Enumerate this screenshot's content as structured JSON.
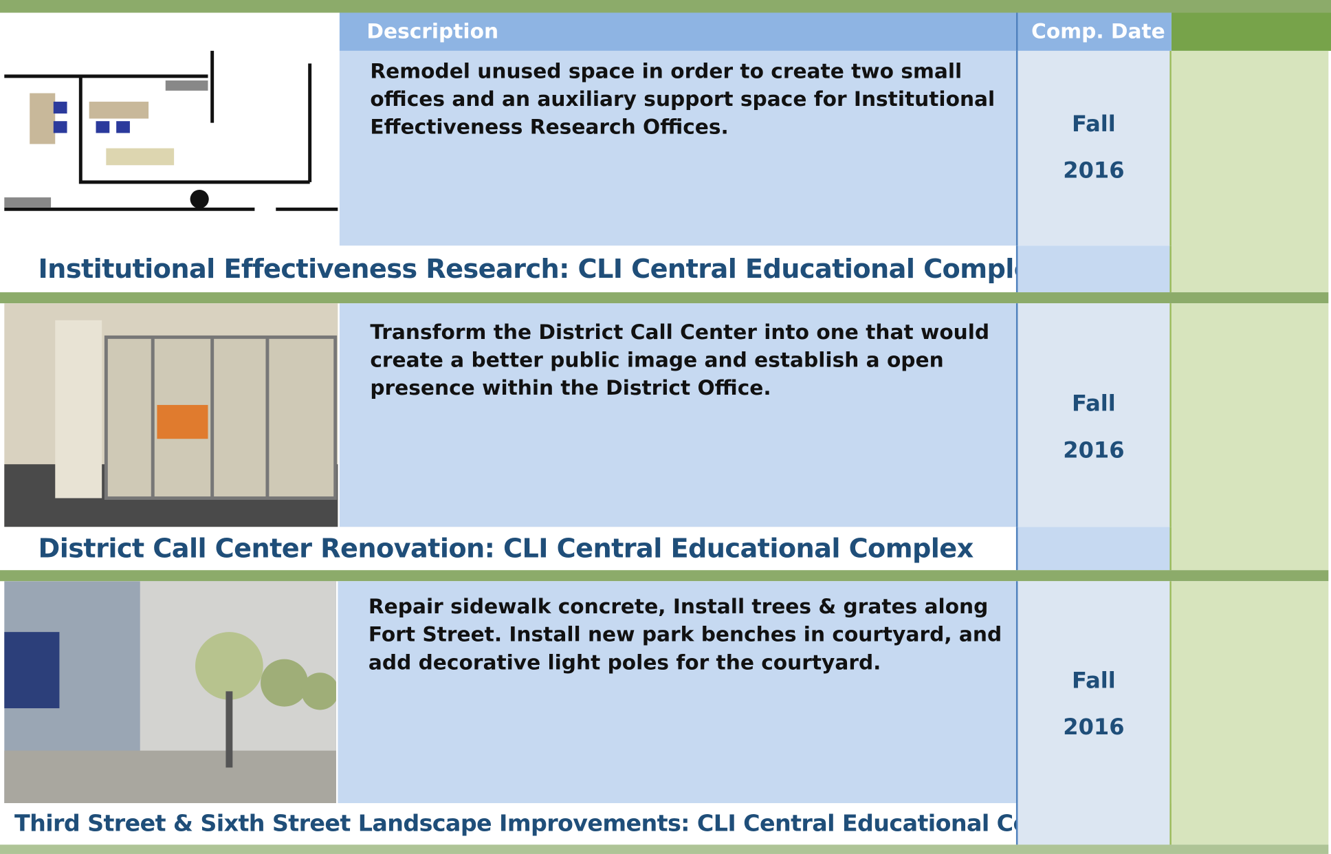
{
  "header": {
    "description_label": "Description",
    "date_label": "Comp. Date"
  },
  "rows": [
    {
      "title": "Institutional Effectiveness Research: CLI Central Educational Complex",
      "description": "Remodel unused space in order to create two small offices and an auxiliary support space for Institutional Effectiveness Research Offices.",
      "date": [
        "Fall",
        "2016"
      ]
    },
    {
      "title": "District Call Center Renovation: CLI Central Educational Complex",
      "description": "Transform the District Call Center into one that would create a better public image and establish a open presence within the District Office.",
      "date": [
        "Fall",
        "2016"
      ]
    },
    {
      "title": "Third Street & Sixth Street Landscape Improvements: CLI Central Educational Complex",
      "description": "Repair sidewalk concrete, Install trees & grates along Fort Street. Install new park benches in courtyard, and add decorative light poles for the courtyard.",
      "date": [
        "Fall",
        "2016"
      ]
    }
  ]
}
